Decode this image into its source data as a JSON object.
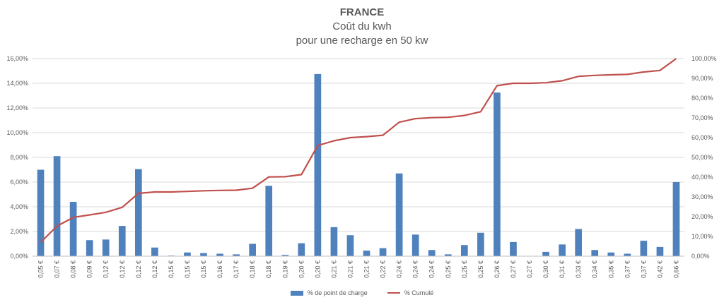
{
  "chart_data": {
    "type": "bar+line",
    "title": "FRANCE",
    "subtitle_lines": [
      "Coût du kwh",
      "pour une recharge en 50 kw"
    ],
    "categories": [
      "0,05 €",
      "0,07 €",
      "0,08 €",
      "0,09 €",
      "0,12 €",
      "0,12 €",
      "0,12 €",
      "0,12 €",
      "0,15 €",
      "0,15 €",
      "0,15 €",
      "0,16 €",
      "0,17 €",
      "0,18 €",
      "0,18 €",
      "0,19 €",
      "0,20 €",
      "0,20 €",
      "0,21 €",
      "0,21 €",
      "0,21 €",
      "0,22 €",
      "0,24 €",
      "0,24 €",
      "0,24 €",
      "0,25 €",
      "0,25 €",
      "0,25 €",
      "0,26 €",
      "0,27 €",
      "0,27 €",
      "0,30 €",
      "0,31 €",
      "0,33 €",
      "0,34 €",
      "0,35 €",
      "0,37 €",
      "0,37 €",
      "0,42 €",
      "0,66 €"
    ],
    "series": [
      {
        "name": "% de point de charge",
        "type": "bar",
        "axis": "left",
        "color": "#4f81bd",
        "values": [
          7.0,
          8.1,
          4.4,
          1.3,
          1.35,
          2.45,
          7.05,
          0.7,
          0.05,
          0.3,
          0.25,
          0.2,
          0.15,
          1.0,
          5.7,
          0.1,
          1.05,
          14.75,
          2.35,
          1.7,
          0.45,
          0.65,
          6.7,
          1.75,
          0.5,
          0.15,
          0.9,
          1.9,
          13.25,
          1.15,
          0.0,
          0.35,
          0.95,
          2.2,
          0.5,
          0.3,
          0.2,
          1.25,
          0.75,
          6.0
        ]
      },
      {
        "name": "% Cumulé",
        "type": "line",
        "axis": "right",
        "color": "#c0504d",
        "values": [
          7.0,
          15.2,
          19.6,
          20.9,
          22.2,
          24.7,
          31.8,
          32.5,
          32.5,
          32.8,
          33.1,
          33.3,
          33.4,
          34.4,
          40.1,
          40.2,
          41.3,
          56.0,
          58.4,
          60.0,
          60.5,
          61.2,
          67.8,
          69.6,
          70.1,
          70.3,
          71.2,
          73.1,
          86.3,
          87.5,
          87.5,
          87.8,
          88.8,
          91.0,
          91.5,
          91.8,
          92.0,
          93.2,
          94.0,
          100.0
        ]
      }
    ],
    "y_left": {
      "min": 0,
      "max": 16,
      "step": 2,
      "tick_suffix": "%",
      "decimals": 2
    },
    "y_right": {
      "min": 0,
      "max": 100,
      "step": 10,
      "tick_suffix": "%",
      "decimals": 2
    },
    "grid": true,
    "legend_position": "bottom"
  },
  "legend": {
    "bar_label": "% de point de charge",
    "line_label": "% Cumulé"
  }
}
